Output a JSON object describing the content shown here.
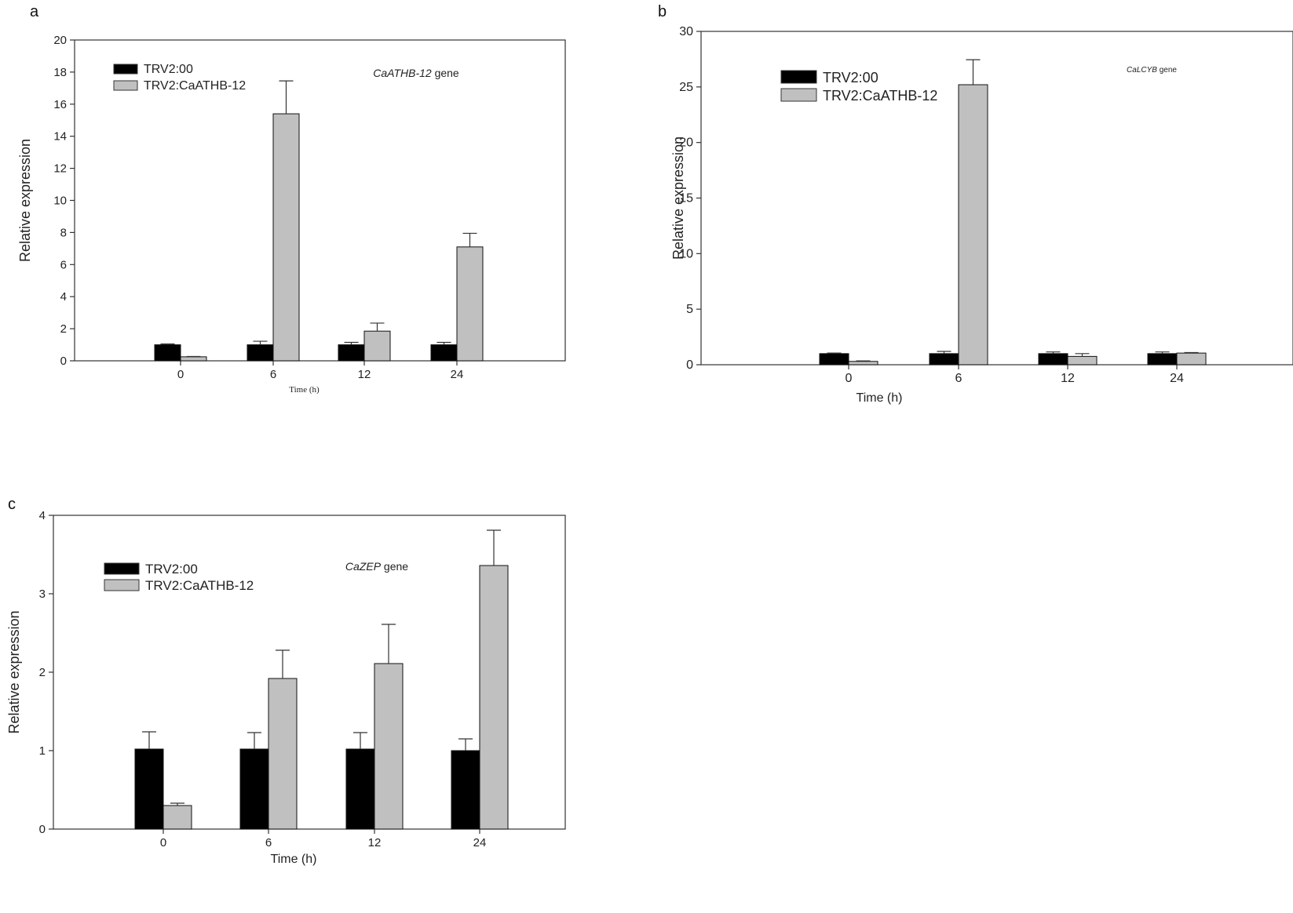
{
  "chart_data": [
    {
      "type": "bar",
      "panel": "a",
      "title": "CaATHB-12 gene",
      "title_italic_part": "CaATHB-12",
      "title_plain_part": " gene",
      "xlabel": "Time (h)",
      "ylabel": "Relative expression",
      "ylim": [
        0,
        20
      ],
      "yticks": [
        0,
        2,
        4,
        6,
        8,
        10,
        12,
        14,
        16,
        18,
        20
      ],
      "categories": [
        "0",
        "6",
        "12",
        "24"
      ],
      "legend_position": "top-left",
      "grid": false,
      "series": [
        {
          "name": "TRV2:00",
          "color": "#000000",
          "values": [
            1.0,
            1.0,
            1.0,
            1.0
          ],
          "errors": [
            0.05,
            0.22,
            0.15,
            0.15
          ]
        },
        {
          "name": "TRV2:CaATHB-12",
          "color": "#c0c0c0",
          "values": [
            0.25,
            15.4,
            1.85,
            7.1
          ],
          "errors": [
            0.02,
            2.05,
            0.5,
            0.85
          ]
        }
      ]
    },
    {
      "type": "bar",
      "panel": "b",
      "title": "CaLCYB gene",
      "title_italic_part": "CaLCYB",
      "title_plain_part": " gene",
      "xlabel": "Time (h)",
      "ylabel": "Relative expression",
      "ylim": [
        0,
        30
      ],
      "yticks": [
        0,
        5,
        10,
        15,
        20,
        25,
        30
      ],
      "categories": [
        "0",
        "6",
        "12",
        "24"
      ],
      "legend_position": "top-left",
      "grid": false,
      "series": [
        {
          "name": "TRV2:00",
          "color": "#000000",
          "values": [
            1.0,
            1.0,
            1.0,
            1.0
          ],
          "errors": [
            0.05,
            0.2,
            0.15,
            0.15
          ]
        },
        {
          "name": "TRV2:CaATHB-12",
          "color": "#c0c0c0",
          "values": [
            0.3,
            25.2,
            0.75,
            1.05
          ],
          "errors": [
            0.05,
            2.25,
            0.25,
            0.05
          ]
        }
      ]
    },
    {
      "type": "bar",
      "panel": "c",
      "title": "CaZEP gene",
      "title_italic_part": "CaZEP",
      "title_plain_part": " gene",
      "xlabel": "Time (h)",
      "ylabel": "Relative expression",
      "ylim": [
        0,
        4
      ],
      "yticks": [
        0,
        1,
        2,
        3,
        4
      ],
      "categories": [
        "0",
        "6",
        "12",
        "24"
      ],
      "legend_position": "top-left",
      "grid": false,
      "series": [
        {
          "name": "TRV2:00",
          "color": "#000000",
          "values": [
            1.02,
            1.02,
            1.02,
            1.0
          ],
          "errors": [
            0.22,
            0.21,
            0.21,
            0.15
          ]
        },
        {
          "name": "TRV2:CaATHB-12",
          "color": "#c0c0c0",
          "values": [
            0.3,
            1.92,
            2.11,
            3.36
          ],
          "errors": [
            0.03,
            0.36,
            0.5,
            0.45
          ]
        }
      ]
    }
  ],
  "panels": {
    "a": "a",
    "b": "b",
    "c": "c"
  }
}
